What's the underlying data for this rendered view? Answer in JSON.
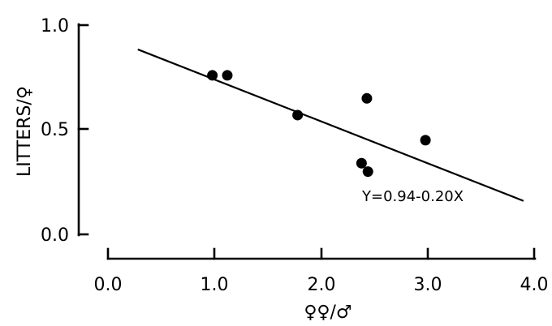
{
  "chart_data": {
    "type": "scatter",
    "title": "",
    "xlabel": "♀♀/♂",
    "ylabel": "LITTERS/♀",
    "xlim": [
      0.0,
      4.0
    ],
    "ylim": [
      0.0,
      1.0
    ],
    "xticks": [
      "0.0",
      "1.0",
      "2.0",
      "3.0",
      "4.0"
    ],
    "yticks": [
      "0.0",
      "0.5",
      "1.0"
    ],
    "grid": false,
    "legend": "none",
    "x": [
      0.98,
      1.12,
      1.78,
      2.38,
      2.43,
      2.44,
      2.98
    ],
    "y": [
      0.76,
      0.76,
      0.57,
      0.34,
      0.65,
      0.3,
      0.45
    ],
    "fit_line": {
      "equation": "Y=0.94-0.20X",
      "x_range": [
        0.28,
        3.9
      ]
    }
  }
}
